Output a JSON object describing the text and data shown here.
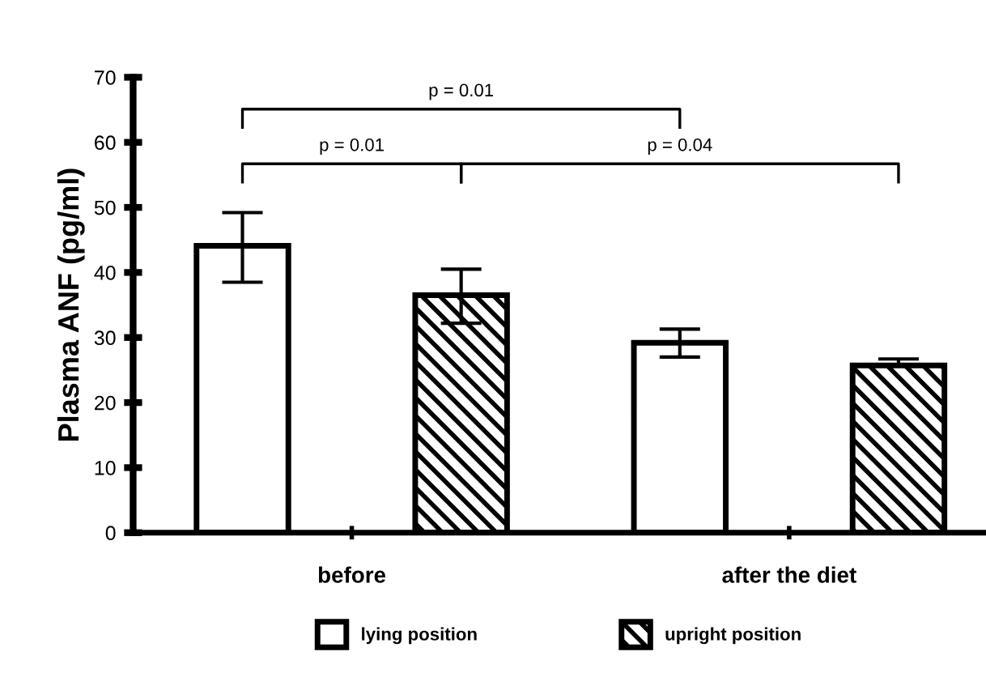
{
  "chart_data": {
    "type": "bar",
    "ylabel": "Plasma ANF (pg/ml)",
    "categories": [
      "before",
      "after the diet"
    ],
    "series": [
      {
        "name": "lying position",
        "color": "#ffffff",
        "values": [
          44.1,
          29.2
        ],
        "errors": [
          [
            38.5,
            49.2
          ],
          [
            27.0,
            31.3
          ]
        ]
      },
      {
        "name": "upright position",
        "color": "#000000",
        "values": [
          36.5,
          25.7
        ],
        "errors": [
          [
            32.2,
            40.5
          ],
          [
            25.7,
            26.7
          ]
        ]
      }
    ],
    "ylim": [
      0,
      70
    ],
    "yticks": [
      0,
      10,
      20,
      30,
      40,
      50,
      60,
      70
    ],
    "annotations": [
      "p = 0.01",
      "p = 0.01",
      "p = 0.04"
    ],
    "grid": false,
    "legend": "bottom"
  }
}
